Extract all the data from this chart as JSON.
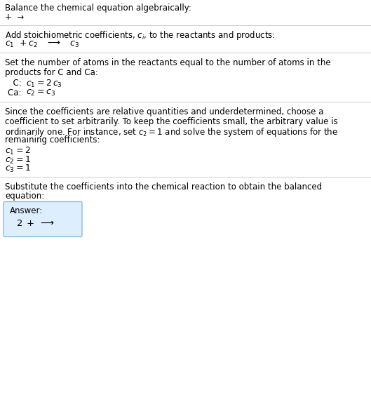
{
  "title_line": "Balance the chemical equation algebraically:",
  "section1_intro": "+  →",
  "section2_title": "Add stoichiometric coefficients, $c_i$, to the reactants and products:",
  "section3_title_l1": "Set the number of atoms in the reactants equal to the number of atoms in the",
  "section3_title_l2": "products for C and Ca:",
  "section4_text_l1": "Since the coefficients are relative quantities and underdetermined, choose a",
  "section4_text_l2": "coefficient to set arbitrarily. To keep the coefficients small, the arbitrary value is",
  "section4_text_l3": "ordinarily one. For instance, set $c_2 = 1$ and solve the system of equations for the",
  "section4_text_l4": "remaining coefficients:",
  "section5_title_l1": "Substitute the coefficients into the chemical reaction to obtain the balanced",
  "section5_title_l2": "equation:",
  "answer_label": "Answer:",
  "bg_color": "#ffffff",
  "text_color": "#000000",
  "line_color": "#cccccc",
  "answer_box_bg": "#ddeeff",
  "answer_box_border": "#88bbdd"
}
